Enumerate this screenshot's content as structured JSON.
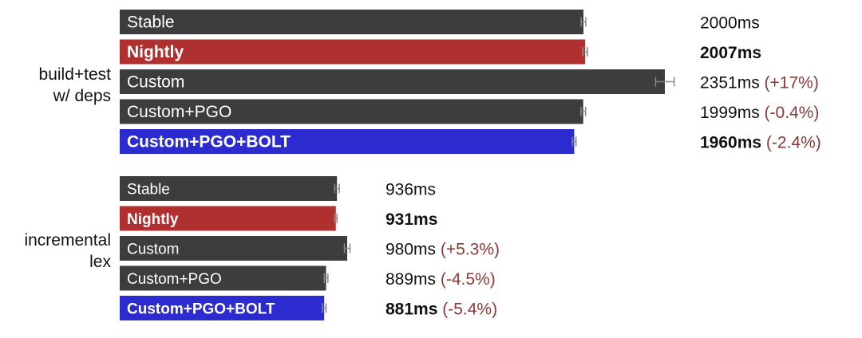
{
  "chart_data": {
    "type": "bar",
    "orientation": "horizontal",
    "colors": {
      "Stable": "#3d3d3d",
      "Nightly": "#b03030",
      "Custom": "#3d3d3d",
      "Custom+PGO": "#3d3d3d",
      "Custom+PGO+BOLT": "#2b2bd0",
      "error": "#888888",
      "delta": "#8a3a36"
    },
    "groups": [
      {
        "label_lines": [
          "build+test",
          "w/ deps"
        ],
        "bars": [
          {
            "name": "Stable",
            "value": 2000,
            "err": 10,
            "value_text": "2000ms",
            "delta": "",
            "bold": false
          },
          {
            "name": "Nightly",
            "value": 2007,
            "err": 10,
            "value_text": "2007ms",
            "delta": "",
            "bold": true
          },
          {
            "name": "Custom",
            "value": 2351,
            "err": 40,
            "value_text": "2351ms",
            "delta": "(+17%)",
            "bold": false
          },
          {
            "name": "Custom+PGO",
            "value": 1999,
            "err": 10,
            "value_text": "1999ms",
            "delta": "(-0.4%)",
            "bold": false
          },
          {
            "name": "Custom+PGO+BOLT",
            "value": 1960,
            "err": 8,
            "value_text": "1960ms",
            "delta": "(-2.4%)",
            "bold": true
          }
        ]
      },
      {
        "label_lines": [
          "incremental",
          "lex"
        ],
        "bars": [
          {
            "name": "Stable",
            "value": 936,
            "err": 10,
            "value_text": "936ms",
            "delta": "",
            "bold": false
          },
          {
            "name": "Nightly",
            "value": 931,
            "err": 5,
            "value_text": "931ms",
            "delta": "",
            "bold": true
          },
          {
            "name": "Custom",
            "value": 980,
            "err": 12,
            "value_text": "980ms",
            "delta": "(+5.3%)",
            "bold": false
          },
          {
            "name": "Custom+PGO",
            "value": 889,
            "err": 8,
            "value_text": "889ms",
            "delta": "(-4.5%)",
            "bold": false
          },
          {
            "name": "Custom+PGO+BOLT",
            "value": 881,
            "err": 8,
            "value_text": "881ms",
            "delta": "(-5.4%)",
            "bold": true
          }
        ]
      }
    ]
  }
}
